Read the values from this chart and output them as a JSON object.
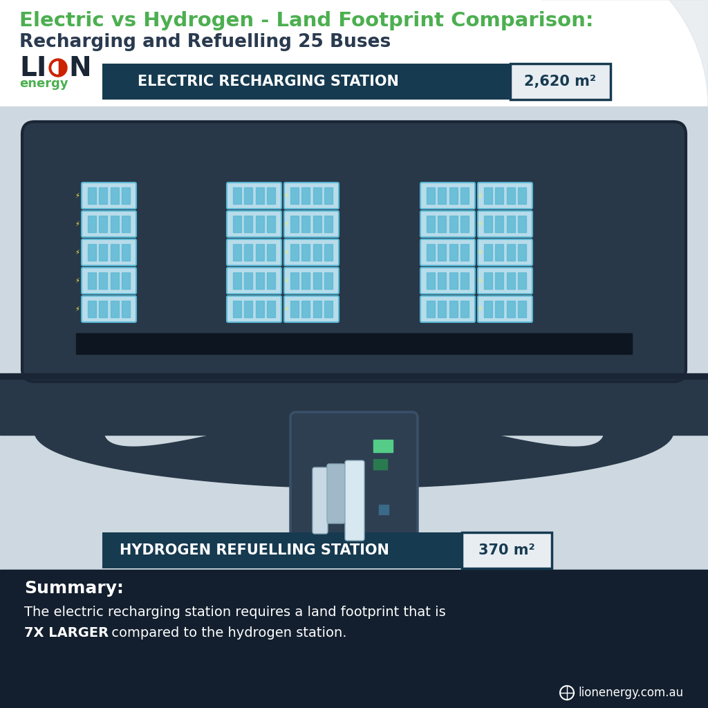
{
  "title_line1": "Electric vs Hydrogen - Land Footprint Comparison:",
  "title_line2": "Recharging and Refuelling 25 Buses",
  "title_color": "#4CAF50",
  "subtitle_color": "#2a3a4f",
  "bg_white": "#ffffff",
  "bg_light": "#cdd8e0",
  "bg_dark_navy": "#1e2d3d",
  "bg_bottom": "#131f2e",
  "electric_label": "ELECTRIC RECHARGING STATION",
  "electric_value": "2,620 m²",
  "hydrogen_label": "HYDROGEN REFUELLING STATION",
  "hydrogen_value": "370 m²",
  "label_bg": "#163a50",
  "value_bg": "#e8edf2",
  "summary_title": "Summary:",
  "summary_line1": "The electric recharging station requires a land footprint that is",
  "summary_bold": "7X LARGER",
  "summary_line2": " compared to the hydrogen station.",
  "website": "lionenergy.com.au",
  "charger_color": "#b8dcea",
  "charger_stripe": "#5ab8d4",
  "station_dark": "#283848",
  "road_color": "#283848",
  "deco_grey": "#dde3e8"
}
